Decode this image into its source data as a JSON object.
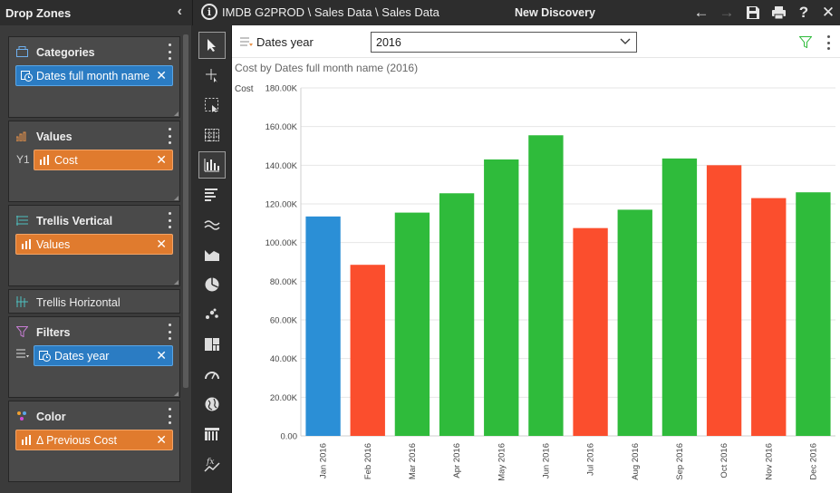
{
  "drop_zones": {
    "title": "Drop Zones",
    "collapse_icon": "chevron-left-icon",
    "categories": {
      "title": "Categories",
      "pill": "Dates full month name"
    },
    "values": {
      "title": "Values",
      "axis_prefix": "Y1",
      "pill": "Cost"
    },
    "trellis_vertical": {
      "title": "Trellis Vertical",
      "pill": "Values"
    },
    "trellis_horizontal": {
      "title": "Trellis Horizontal"
    },
    "filters": {
      "title": "Filters",
      "pill": "Dates year"
    },
    "color": {
      "title": "Color",
      "pill": "Δ Previous Cost"
    }
  },
  "topbar": {
    "info": "i",
    "breadcrumb": "IMDB G2PROD \\ Sales Data \\ Sales Data",
    "title": "New Discovery",
    "back": "←",
    "forward": "→",
    "help": "?",
    "close": "✕"
  },
  "tools": [
    "pointer-tool-icon",
    "add-tool-icon",
    "select-tool-icon",
    "grid-table-icon",
    "column-chart-icon",
    "bar-chart-icon",
    "line-chart-icon",
    "area-chart-icon",
    "pie-chart-icon",
    "scatter-chart-icon",
    "treemap-icon",
    "gauge-icon",
    "map-icon",
    "pivot-grid-icon",
    "formula-icon"
  ],
  "filter_bar": {
    "label": "Dates year",
    "value": "2016"
  },
  "chart_data": {
    "type": "bar",
    "title": "Cost by Dates full month name (2016)",
    "ylabel": "Cost",
    "ylim": [
      0,
      180000
    ],
    "yticks": [
      "0.00",
      "20.00K",
      "40.00K",
      "60.00K",
      "80.00K",
      "100.00K",
      "120.00K",
      "140.00K",
      "160.00K",
      "180.00K"
    ],
    "grid": true,
    "categories": [
      "Jan 2016",
      "Feb 2016",
      "Mar 2016",
      "Apr 2016",
      "May 2016",
      "Jun 2016",
      "Jul 2016",
      "Aug 2016",
      "Sep 2016",
      "Oct 2016",
      "Nov 2016",
      "Dec 2016"
    ],
    "values": [
      113500,
      88500,
      115500,
      125500,
      143000,
      155500,
      107500,
      117000,
      143500,
      140000,
      123000,
      126000
    ],
    "colors": [
      "#2b8fd6",
      "#fb4e2d",
      "#2fbb3b",
      "#2fbb3b",
      "#2fbb3b",
      "#2fbb3b",
      "#fb4e2d",
      "#2fbb3b",
      "#2fbb3b",
      "#fb4e2d",
      "#fb4e2d",
      "#2fbb3b"
    ]
  }
}
